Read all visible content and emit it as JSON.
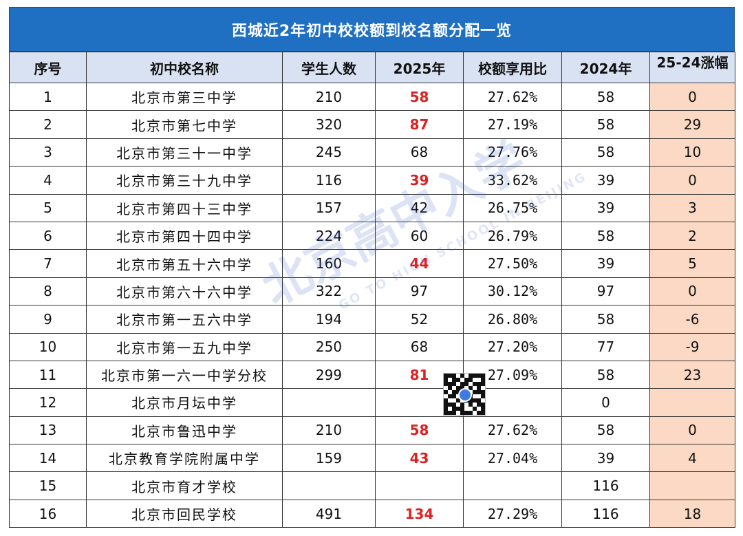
{
  "title": "西城近2年初中校校额到校名额分配一览",
  "headers": [
    "序号",
    "初中校名称",
    "学生人数",
    "2025年",
    "校额享用比",
    "2024年",
    "25-24涨幅"
  ],
  "rows": [
    {
      "idx": "1",
      "name": "北京市第三中学",
      "students": "210",
      "y2025": "58",
      "hot": true,
      "ratio": "27.62%",
      "y2024": "58",
      "diff": "0"
    },
    {
      "idx": "2",
      "name": "北京市第七中学",
      "students": "320",
      "y2025": "87",
      "hot": true,
      "ratio": "27.19%",
      "y2024": "58",
      "diff": "29"
    },
    {
      "idx": "3",
      "name": "北京市第三十一中学",
      "students": "245",
      "y2025": "68",
      "hot": false,
      "ratio": "27.76%",
      "y2024": "58",
      "diff": "10"
    },
    {
      "idx": "4",
      "name": "北京市第三十九中学",
      "students": "116",
      "y2025": "39",
      "hot": true,
      "ratio": "33.62%",
      "y2024": "39",
      "diff": "0"
    },
    {
      "idx": "5",
      "name": "北京市第四十三中学",
      "students": "157",
      "y2025": "42",
      "hot": false,
      "ratio": "26.75%",
      "y2024": "39",
      "diff": "3"
    },
    {
      "idx": "6",
      "name": "北京市第四十四中学",
      "students": "224",
      "y2025": "60",
      "hot": false,
      "ratio": "26.79%",
      "y2024": "58",
      "diff": "2"
    },
    {
      "idx": "7",
      "name": "北京市第五十六中学",
      "students": "160",
      "y2025": "44",
      "hot": true,
      "ratio": "27.50%",
      "y2024": "39",
      "diff": "5"
    },
    {
      "idx": "8",
      "name": "北京市第六十六中学",
      "students": "322",
      "y2025": "97",
      "hot": false,
      "ratio": "30.12%",
      "y2024": "97",
      "diff": "0"
    },
    {
      "idx": "9",
      "name": "北京市第一五六中学",
      "students": "194",
      "y2025": "52",
      "hot": false,
      "ratio": "26.80%",
      "y2024": "58",
      "diff": "-6"
    },
    {
      "idx": "10",
      "name": "北京市第一五九中学",
      "students": "250",
      "y2025": "68",
      "hot": false,
      "ratio": "27.20%",
      "y2024": "77",
      "diff": "-9"
    },
    {
      "idx": "11",
      "name": "北京市第一六一中学分校",
      "students": "299",
      "y2025": "81",
      "hot": true,
      "ratio": "27.09%",
      "y2024": "58",
      "diff": "23"
    },
    {
      "idx": "12",
      "name": "北京市月坛中学",
      "students": "",
      "y2025": "",
      "hot": false,
      "ratio": "",
      "y2024": "0",
      "diff": ""
    },
    {
      "idx": "13",
      "name": "北京市鲁迅中学",
      "students": "210",
      "y2025": "58",
      "hot": true,
      "ratio": "27.62%",
      "y2024": "58",
      "diff": "0"
    },
    {
      "idx": "14",
      "name": "北京教育学院附属中学",
      "students": "159",
      "y2025": "43",
      "hot": true,
      "ratio": "27.04%",
      "y2024": "39",
      "diff": "4"
    },
    {
      "idx": "15",
      "name": "北京市育才学校",
      "students": "",
      "y2025": "",
      "hot": false,
      "ratio": "",
      "y2024": "116",
      "diff": ""
    },
    {
      "idx": "16",
      "name": "北京市回民学校",
      "students": "491",
      "y2025": "134",
      "hot": true,
      "ratio": "27.29%",
      "y2024": "116",
      "diff": "18"
    }
  ],
  "watermark": {
    "main": "北京高中入学",
    "sub": "GO TO HIGH SCHOOL IN BEIJING"
  },
  "colors": {
    "title_bg": "#1f6fc3",
    "header_bg": "#d9e2f3",
    "diff_bg": "#fbd9c4",
    "hot_text": "#e02020"
  },
  "icons": {
    "qr": "qr-code-icon"
  }
}
